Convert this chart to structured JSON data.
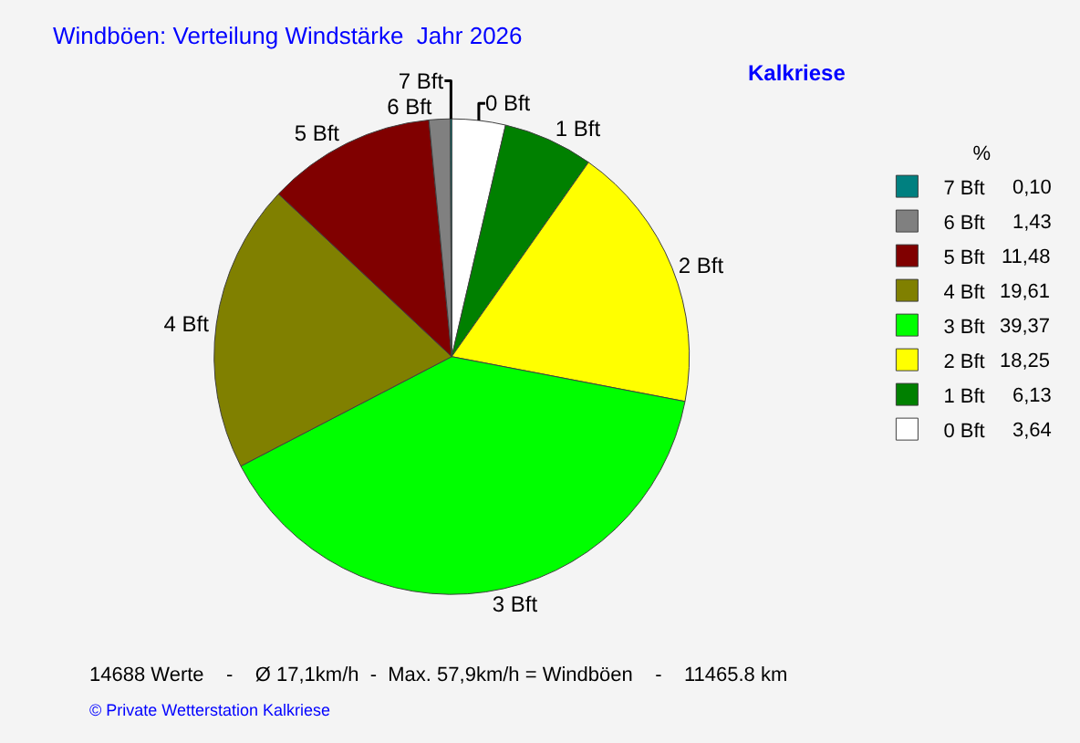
{
  "chart_data": {
    "type": "pie",
    "title": "Windböen: Verteilung Windstärke  Jahr 2026",
    "subtitle": "Kalkriese",
    "legend_title": "%",
    "categories": [
      "0 Bft",
      "1 Bft",
      "2 Bft",
      "3 Bft",
      "4 Bft",
      "5 Bft",
      "6 Bft",
      "7 Bft"
    ],
    "values": [
      3.64,
      6.13,
      18.25,
      39.37,
      19.61,
      11.48,
      1.43,
      0.1
    ],
    "value_labels": [
      "3,64",
      "6,13",
      "18,25",
      "39,37",
      "19,61",
      "11,48",
      "1,43",
      "0,10"
    ],
    "colors": [
      "#ffffff",
      "#008000",
      "#ffff00",
      "#00ff00",
      "#808000",
      "#800000",
      "#808080",
      "#008080"
    ],
    "legend": "right",
    "annotations": [
      "14688 Werte    -    Ø 17,1km/h  -  Max. 57,9km/h = Windböen    -    11465.8 km",
      "© Private Wetterstation Kalkriese"
    ]
  }
}
